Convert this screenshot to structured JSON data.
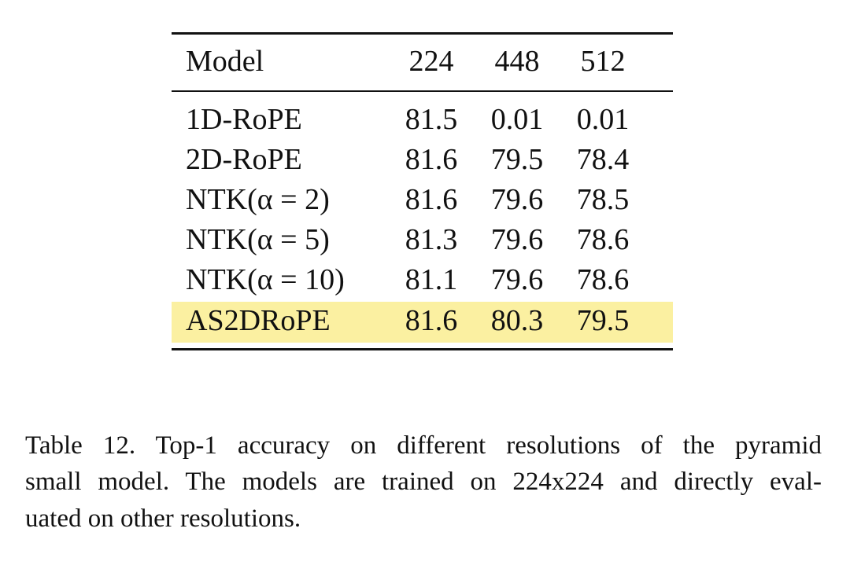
{
  "table": {
    "header": [
      "Model",
      "224",
      "448",
      "512"
    ],
    "rows": [
      [
        "1D-RoPE",
        "81.5",
        "0.01",
        "0.01"
      ],
      [
        "2D-RoPE",
        "81.6",
        "79.5",
        "78.4"
      ],
      [
        "NTK(α = 2)",
        "81.6",
        "79.6",
        "78.5"
      ],
      [
        "NTK(α = 5)",
        "81.3",
        "79.6",
        "78.6"
      ],
      [
        "NTK(α = 10)",
        "81.1",
        "79.6",
        "78.6"
      ],
      [
        "AS2DRoPE",
        "81.6",
        "80.3",
        "79.5"
      ]
    ]
  },
  "caption": {
    "lines": [
      "Table 12. Top-1 accuracy on different resolutions of the pyramid",
      "small model. The models are trained on 224x224 and directly eval-",
      "uated on other resolutions."
    ]
  }
}
